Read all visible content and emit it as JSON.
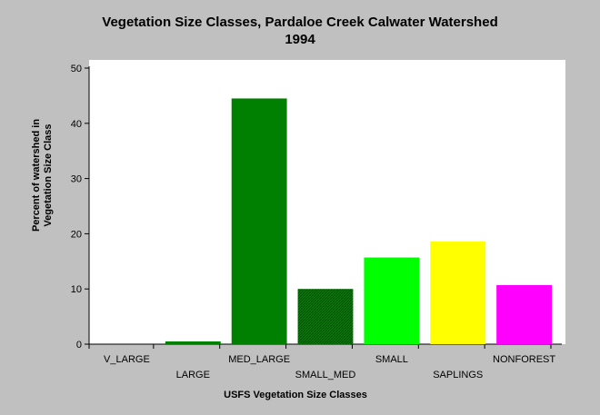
{
  "chart_data": {
    "type": "bar",
    "title_line1": "Vegetation Size Classes, Pardaloe Creek Calwater Watershed",
    "title_line2": "1994",
    "xlabel": "USFS Vegetation Size Classes",
    "ylabel_line1": "Percent of watershed in",
    "ylabel_line2": "Vegetation Size Class",
    "ylim": [
      0,
      50
    ],
    "yticks": [
      0,
      10,
      20,
      30,
      40,
      50
    ],
    "categories": [
      "V_LARGE",
      "LARGE",
      "MED_LARGE",
      "SMALL_MED",
      "SMALL",
      "SAPLINGS",
      "NONFOREST"
    ],
    "values": [
      0,
      0.5,
      44.5,
      10,
      15.7,
      18.6,
      10.7
    ],
    "colors": [
      "#008000",
      "#008000",
      "#008000",
      "#006400",
      "#00ff00",
      "#ffff00",
      "#ff00ff"
    ],
    "hatched": [
      false,
      false,
      false,
      true,
      false,
      false,
      false
    ],
    "grid": false,
    "legend": "none"
  }
}
